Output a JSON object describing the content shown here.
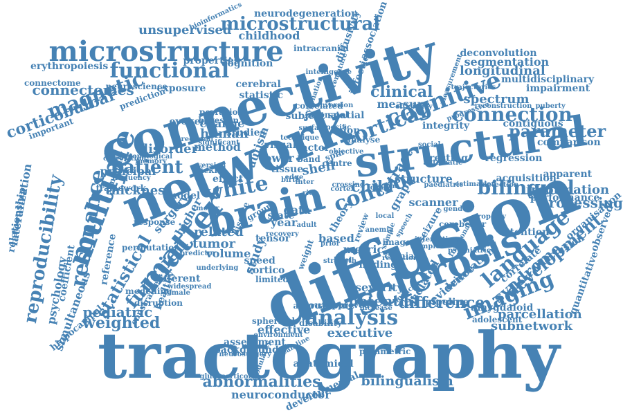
{
  "color": "#4682b4",
  "words": [
    {
      "text": "tractography"
    },
    {
      "text": "diffusion"
    },
    {
      "text": "connectivity"
    },
    {
      "text": "network"
    },
    {
      "text": "structural"
    },
    {
      "text": "brain"
    },
    {
      "text": "microstructure"
    },
    {
      "text": "multiple"
    },
    {
      "text": "sclerosis"
    },
    {
      "text": "white"
    },
    {
      "text": "matter"
    },
    {
      "text": "functional"
    },
    {
      "text": "cortical"
    },
    {
      "text": "cognitive"
    },
    {
      "text": "connection"
    },
    {
      "text": "analysis"
    },
    {
      "text": "imaging"
    },
    {
      "text": "language"
    },
    {
      "text": "reproducibility"
    },
    {
      "text": "resonance"
    },
    {
      "text": "magnetic"
    },
    {
      "text": "control"
    },
    {
      "text": "child"
    },
    {
      "text": "patient"
    },
    {
      "text": "bilingual"
    },
    {
      "text": "parameter"
    },
    {
      "text": "processing"
    },
    {
      "text": "abnormalities"
    },
    {
      "text": "bilingualism"
    },
    {
      "text": "microstructural"
    },
    {
      "text": "connectomes"
    },
    {
      "text": "clinical"
    },
    {
      "text": "difference"
    },
    {
      "text": "function"
    },
    {
      "text": "statistical"
    },
    {
      "text": "weighted"
    },
    {
      "text": "pediatric"
    },
    {
      "text": "tract"
    },
    {
      "text": "development"
    },
    {
      "text": "syndrome"
    },
    {
      "text": "parcellation"
    },
    {
      "text": "subnetwork"
    },
    {
      "text": "information"
    },
    {
      "text": "longitudinal"
    },
    {
      "text": "spectrum"
    },
    {
      "text": "segmentation"
    },
    {
      "text": "corticobulbar"
    },
    {
      "text": "human"
    },
    {
      "text": "disorder"
    },
    {
      "text": "method"
    },
    {
      "text": "thickness"
    },
    {
      "text": "tumor"
    },
    {
      "text": "volume"
    },
    {
      "text": "related"
    },
    {
      "text": "study"
    },
    {
      "text": "data"
    },
    {
      "text": "graph"
    },
    {
      "text": "structure"
    },
    {
      "text": "scanner"
    },
    {
      "text": "measure"
    },
    {
      "text": "shell"
    },
    {
      "text": "potential"
    },
    {
      "text": "executive"
    },
    {
      "text": "effective"
    },
    {
      "text": "severity"
    },
    {
      "text": "isolated"
    },
    {
      "text": "evidence"
    },
    {
      "text": "unsupervised"
    },
    {
      "text": "childhood"
    },
    {
      "text": "neurodegeneration"
    },
    {
      "text": "exposure"
    },
    {
      "text": "neuroconductor"
    },
    {
      "text": "developmental"
    },
    {
      "text": "lateralization"
    },
    {
      "text": "relationship"
    },
    {
      "text": "psychology"
    },
    {
      "text": "simultaneous"
    },
    {
      "text": "coefficient"
    },
    {
      "text": "hippocampal"
    },
    {
      "text": "reference"
    },
    {
      "text": "surgery"
    },
    {
      "text": "higher"
    },
    {
      "text": "model"
    },
    {
      "text": "principal"
    },
    {
      "text": "statistic"
    },
    {
      "text": "cerebral"
    },
    {
      "text": "subject"
    },
    {
      "text": "region"
    },
    {
      "text": "spatial"
    },
    {
      "text": "neonatal"
    },
    {
      "text": "correlated"
    },
    {
      "text": "cognition"
    },
    {
      "text": "properties"
    },
    {
      "text": "erythropoiesis"
    },
    {
      "text": "intracranial"
    },
    {
      "text": "diffusivity"
    },
    {
      "text": "bioinformatics"
    },
    {
      "text": "association"
    },
    {
      "text": "deconvolution"
    },
    {
      "text": "impairment"
    },
    {
      "text": "multidisciplinary"
    },
    {
      "text": "contiguous"
    },
    {
      "text": "regression"
    },
    {
      "text": "comparison"
    },
    {
      "text": "acquisition"
    },
    {
      "text": "apparent"
    },
    {
      "text": "performance"
    },
    {
      "text": "attention"
    },
    {
      "text": "conclusion"
    },
    {
      "text": "observed"
    },
    {
      "text": "organisation"
    },
    {
      "text": "quantitative"
    },
    {
      "text": "amygdaloid"
    },
    {
      "text": "adolescent"
    },
    {
      "text": "pipeline"
    },
    {
      "text": "correlate"
    },
    {
      "text": "orientation"
    },
    {
      "text": "seizure"
    },
    {
      "text": "finding"
    },
    {
      "text": "image"
    },
    {
      "text": "metric"
    },
    {
      "text": "based"
    },
    {
      "text": "tensor"
    },
    {
      "text": "year"
    },
    {
      "text": "state"
    },
    {
      "text": "autism"
    },
    {
      "text": "evoked"
    },
    {
      "text": "change"
    },
    {
      "text": "studies"
    },
    {
      "text": "visual"
    },
    {
      "text": "lower"
    },
    {
      "text": "factor"
    },
    {
      "text": "band"
    },
    {
      "text": "spin"
    },
    {
      "text": "analyse"
    },
    {
      "text": "infection"
    },
    {
      "text": "integrity"
    },
    {
      "text": "resting"
    },
    {
      "text": "effect"
    },
    {
      "text": "centre"
    },
    {
      "text": "sickle"
    },
    {
      "text": "tissue"
    },
    {
      "text": "cortico"
    },
    {
      "text": "speed"
    },
    {
      "text": "outcome"
    },
    {
      "text": "approach"
    },
    {
      "text": "approved"
    },
    {
      "text": "disability"
    },
    {
      "text": "spherical"
    },
    {
      "text": "assessment"
    },
    {
      "text": "background"
    },
    {
      "text": "anatomical"
    },
    {
      "text": "parametric"
    },
    {
      "text": "glucocorticoid"
    },
    {
      "text": "environment"
    },
    {
      "text": "different"
    },
    {
      "text": "healthy"
    },
    {
      "text": "disruption"
    },
    {
      "text": "constrained"
    },
    {
      "text": "modelling"
    },
    {
      "text": "prediction"
    },
    {
      "text": "important"
    },
    {
      "text": "connectome"
    },
    {
      "text": "neuroscience"
    },
    {
      "text": "perfusion"
    },
    {
      "text": "bayesian"
    },
    {
      "text": "limited"
    },
    {
      "text": "weight"
    },
    {
      "text": "theory"
    },
    {
      "text": "review"
    },
    {
      "text": "adult"
    },
    {
      "text": "group"
    },
    {
      "text": "disease"
    },
    {
      "text": "response"
    },
    {
      "text": "framework"
    },
    {
      "text": "correlation"
    },
    {
      "text": "memory"
    },
    {
      "text": "frequency"
    },
    {
      "text": "permutation"
    },
    {
      "text": "similarity"
    },
    {
      "text": "topological"
    },
    {
      "text": "oxygenation"
    },
    {
      "text": "premature"
    },
    {
      "text": "efficiency"
    },
    {
      "text": "measurement"
    },
    {
      "text": "trajectories"
    },
    {
      "text": "progressive"
    },
    {
      "text": "reconstruction"
    },
    {
      "text": "puberty"
    },
    {
      "text": "significant"
    },
    {
      "text": "conversion"
    },
    {
      "text": "intelligence"
    },
    {
      "text": "fractional"
    },
    {
      "text": "cerebellar"
    },
    {
      "text": "property"
    },
    {
      "text": "social"
    },
    {
      "text": "gender"
    },
    {
      "text": "complex"
    },
    {
      "text": "cranial"
    },
    {
      "text": "resection"
    },
    {
      "text": "widespread"
    },
    {
      "text": "female"
    },
    {
      "text": "predictor"
    },
    {
      "text": "underlying"
    },
    {
      "text": "neurosurgery"
    },
    {
      "text": "modularity"
    },
    {
      "text": "streamline"
    },
    {
      "text": "impact"
    },
    {
      "text": "strength"
    },
    {
      "text": "sample"
    },
    {
      "text": "anemia"
    },
    {
      "text": "psychiatric"
    },
    {
      "text": "speech"
    },
    {
      "text": "version"
    },
    {
      "text": "specific"
    },
    {
      "text": "surface"
    },
    {
      "text": "inter"
    },
    {
      "text": "edge"
    },
    {
      "text": "birth"
    },
    {
      "text": "rich"
    },
    {
      "text": "technique"
    },
    {
      "text": "automatic"
    },
    {
      "text": "paediatric"
    },
    {
      "text": "estimation"
    },
    {
      "text": "detection"
    },
    {
      "text": "objective"
    },
    {
      "text": "cortex"
    },
    {
      "text": "interaction"
    },
    {
      "text": "prior"
    },
    {
      "text": "level"
    },
    {
      "text": "recovery"
    },
    {
      "text": "increase"
    },
    {
      "text": "motor"
    },
    {
      "text": "regional"
    },
    {
      "text": "crossing"
    },
    {
      "text": "local"
    },
    {
      "text": "focal"
    },
    {
      "text": "global"
    }
  ]
}
